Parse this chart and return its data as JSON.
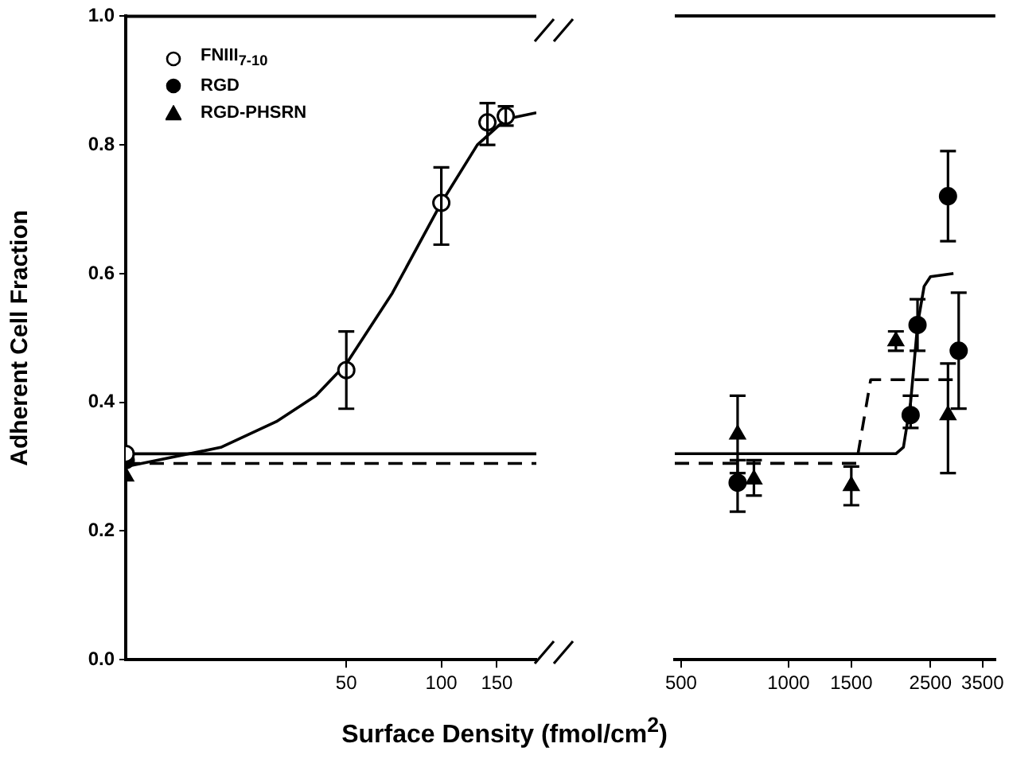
{
  "chart_data": [
    {
      "type": "scatter",
      "ylabel": "Adherent Cell Fraction",
      "xlabel": "Surface Density (fmol/cm$^{2}$)",
      "log": "x",
      "xlim": [
        10,
        200
      ],
      "xticks": [
        50,
        100,
        150
      ],
      "ylim": [
        0,
        1
      ],
      "yticks": [
        {
          "value": 0,
          "label": "0.0"
        },
        {
          "value": 0.2,
          "label": "0.2"
        },
        {
          "value": 0.4,
          "label": "0.4"
        },
        {
          "value": 0.6,
          "label": "0.6"
        },
        {
          "value": 0.8,
          "label": "0.8"
        },
        {
          "value": 1,
          "label": "1.0"
        }
      ],
      "grid": false,
      "legend": "top left",
      "series": [
        {
          "name": "FNIII$_{7-10}$",
          "color": "#000000",
          "marker": "circle",
          "x": [
            10,
            50,
            100,
            140,
            160
          ],
          "values": [
            0.32,
            0.45,
            0.71,
            0.835,
            0.845
          ],
          "errors": [
            null,
            [
              0.39,
              0.51
            ],
            [
              0.645,
              0.765
            ],
            [
              0.8,
              0.865
            ],
            [
              0.83,
              0.86
            ]
          ]
        },
        {
          "name": "RGD",
          "color": "#000000",
          "marker": "circle",
          "x": [
            10
          ],
          "values": [
            0.31
          ]
        },
        {
          "name": "RGD-PHSRN",
          "color": "#000000",
          "marker": "triangle",
          "x": [
            10
          ],
          "values": [
            0.285
          ]
        },
        {
          "type": "line",
          "color": "#000000",
          "marker": "none",
          "line_style": "solid",
          "x": [
            10,
            20,
            30,
            40,
            50,
            70,
            100,
            130,
            160,
            200
          ],
          "values": [
            0.3,
            0.33,
            0.37,
            0.41,
            0.46,
            0.57,
            0.71,
            0.8,
            0.84,
            0.85
          ]
        },
        {
          "type": "line",
          "color": "#000000",
          "marker": "none",
          "line_style": "solid",
          "x": [
            10,
            200
          ],
          "values": [
            0.32,
            0.32
          ]
        },
        {
          "type": "line",
          "color": "#000000",
          "marker": "none",
          "line_style": "dashed",
          "x": [
            10,
            200
          ],
          "values": [
            0.305,
            0.305
          ]
        }
      ]
    },
    {
      "type": "scatter",
      "log": "x",
      "xlim": [
        480,
        3800
      ],
      "xticks": [
        500,
        1000,
        1500,
        2500,
        3500
      ],
      "ylim": [
        0,
        1
      ],
      "tick_labels": "x",
      "grid": false,
      "series": [
        {
          "color": "#000000",
          "marker": "circle",
          "x": [
            720,
            2200,
            2300,
            2800,
            3000
          ],
          "values": [
            0.275,
            0.38,
            0.52,
            0.72,
            0.48
          ],
          "errors": [
            [
              0.23,
              0.31
            ],
            [
              0.36,
              0.41
            ],
            [
              0.48,
              0.56
            ],
            [
              0.65,
              0.79
            ],
            [
              0.39,
              0.57
            ]
          ]
        },
        {
          "color": "#000000",
          "marker": "triangle",
          "x": [
            720,
            800,
            1500,
            2000,
            2800
          ],
          "values": [
            0.35,
            0.28,
            0.27,
            0.495,
            0.38
          ],
          "errors": [
            [
              0.29,
              0.41
            ],
            [
              0.255,
              0.31
            ],
            [
              0.24,
              0.3
            ],
            [
              0.48,
              0.51
            ],
            [
              0.29,
              0.46
            ]
          ]
        },
        {
          "type": "line",
          "color": "#000000",
          "marker": "none",
          "line_style": "solid",
          "x": [
            480,
            2000,
            2100,
            2200,
            2300,
            2400,
            2500,
            2900
          ],
          "values": [
            0.32,
            0.32,
            0.33,
            0.4,
            0.52,
            0.58,
            0.595,
            0.6
          ]
        },
        {
          "type": "line",
          "color": "#000000",
          "marker": "none",
          "line_style": "dashed",
          "x": [
            480,
            1550,
            1700,
            2900
          ],
          "values": [
            0.305,
            0.305,
            0.435,
            0.435
          ]
        }
      ]
    }
  ]
}
